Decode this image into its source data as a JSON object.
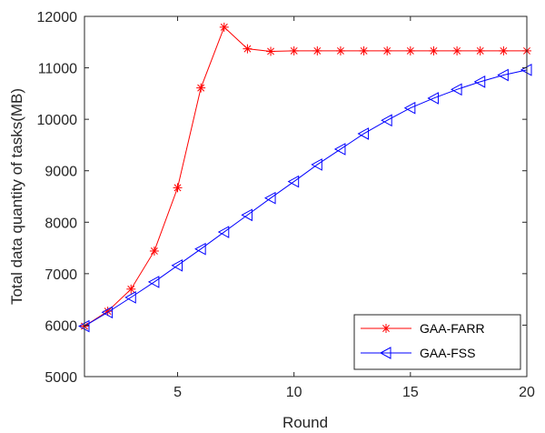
{
  "chart_data": {
    "type": "line",
    "title": "",
    "xlabel": "Round",
    "ylabel": "Total data quantity of tasks(MB)",
    "xlim": [
      1,
      20
    ],
    "ylim": [
      5000,
      12000
    ],
    "xticks": [
      5,
      10,
      15,
      20
    ],
    "yticks": [
      5000,
      6000,
      7000,
      8000,
      9000,
      10000,
      11000,
      12000
    ],
    "grid": false,
    "legend_position": "bottom-right",
    "x": [
      1,
      2,
      3,
      4,
      5,
      6,
      7,
      8,
      9,
      10,
      11,
      12,
      13,
      14,
      15,
      16,
      17,
      18,
      19,
      20
    ],
    "series": [
      {
        "name": "GAA-FARR",
        "color": "#ff0000",
        "marker": "asterisk",
        "values": [
          5980,
          6270,
          6700,
          7440,
          8670,
          10610,
          11790,
          11370,
          11320,
          11330,
          11330,
          11330,
          11330,
          11330,
          11330,
          11330,
          11330,
          11330,
          11330,
          11330
        ]
      },
      {
        "name": "GAA-FSS",
        "color": "#0000ff",
        "marker": "left-triangle",
        "values": [
          5980,
          6250,
          6540,
          6840,
          7160,
          7480,
          7810,
          8140,
          8470,
          8790,
          9120,
          9420,
          9720,
          9980,
          10220,
          10410,
          10580,
          10730,
          10860,
          10960
        ]
      }
    ]
  }
}
